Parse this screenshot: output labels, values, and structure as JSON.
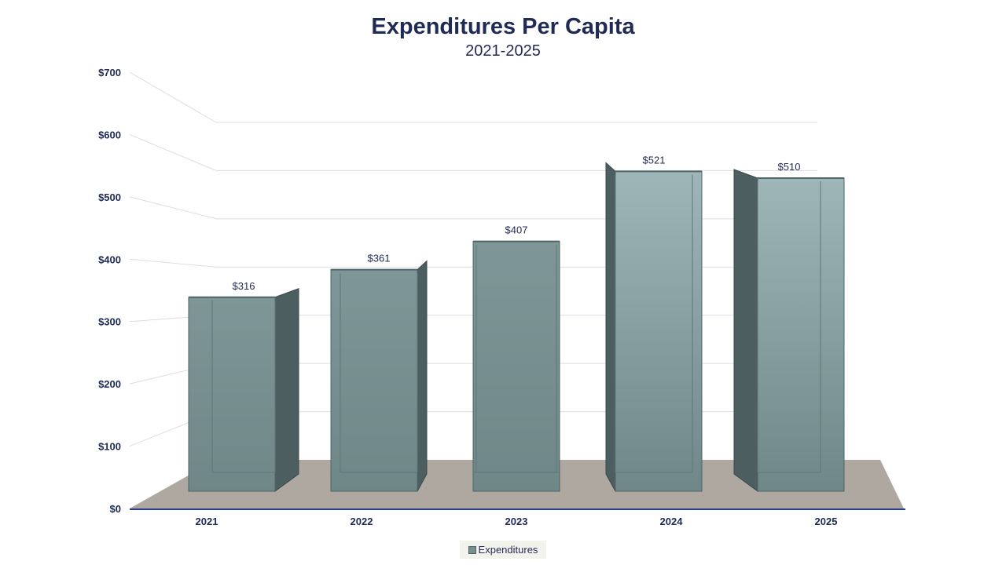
{
  "chart_data": {
    "type": "bar",
    "title": "Expenditures Per Capita",
    "subtitle": "2021-2025",
    "categories": [
      "2021",
      "2022",
      "2023",
      "2024",
      "2025"
    ],
    "series": [
      {
        "name": "Expenditures",
        "values": [
          316,
          361,
          407,
          521,
          510
        ]
      }
    ],
    "data_labels": [
      "$316",
      "$361",
      "$407",
      "$521",
      "$510"
    ],
    "y_ticks": [
      0,
      100,
      200,
      300,
      400,
      500,
      600,
      700
    ],
    "y_tick_labels": [
      "$0",
      "$100",
      "$200",
      "$300",
      "$400",
      "$500",
      "$600",
      "$700"
    ],
    "ylim": [
      0,
      700
    ],
    "xlabel": "",
    "ylabel": "",
    "grid": true,
    "legend_position": "bottom-center",
    "colors": {
      "title": "#1f2a55",
      "bar_front": "#778f90",
      "bar_side": "#4d5e60",
      "floor": "#aea8a0",
      "axis": "#2b3a8c",
      "grid": "#dcdce8"
    }
  }
}
